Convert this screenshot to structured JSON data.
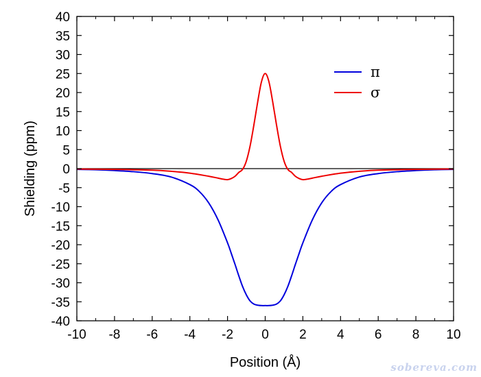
{
  "chart_data": {
    "type": "line",
    "title": "",
    "xlabel": "Position (Å)",
    "ylabel": "Shielding (ppm)",
    "xlim": [
      -10,
      10
    ],
    "ylim": [
      -40,
      40
    ],
    "xticks": [
      -10,
      -8,
      -6,
      -4,
      -2,
      0,
      2,
      4,
      6,
      8,
      10
    ],
    "yticks": [
      40,
      35,
      30,
      25,
      20,
      15,
      10,
      5,
      0,
      -5,
      -10,
      -15,
      -20,
      -25,
      -30,
      -35,
      -40
    ],
    "grid": false,
    "legend_position": "top-right",
    "zero_line": true,
    "series": [
      {
        "name": "π",
        "color": "#0000dd",
        "x": [
          -10,
          -9,
          -8,
          -7,
          -6,
          -5,
          -4,
          -3.5,
          -3,
          -2.5,
          -2,
          -1.8,
          -1.6,
          -1.4,
          -1.2,
          -1.0,
          -0.8,
          -0.6,
          -0.4,
          -0.2,
          0,
          0.2,
          0.4,
          0.6,
          0.8,
          1.0,
          1.2,
          1.4,
          1.6,
          1.8,
          2,
          2.5,
          3,
          3.5,
          4,
          5,
          6,
          7,
          8,
          9,
          10
        ],
        "y": [
          -0.2,
          -0.3,
          -0.5,
          -0.8,
          -1.3,
          -2.2,
          -4.2,
          -6.0,
          -9.0,
          -13.5,
          -19.5,
          -22.3,
          -25.2,
          -28.2,
          -31.0,
          -33.2,
          -34.8,
          -35.6,
          -35.9,
          -36.0,
          -36.0,
          -36.0,
          -35.9,
          -35.6,
          -34.8,
          -33.2,
          -31.0,
          -28.2,
          -25.2,
          -22.3,
          -19.5,
          -13.5,
          -9.0,
          -6.0,
          -4.2,
          -2.2,
          -1.3,
          -0.8,
          -0.5,
          -0.3,
          -0.2
        ]
      },
      {
        "name": "σ",
        "color": "#ee0000",
        "x": [
          -10,
          -8,
          -6,
          -5,
          -4,
          -3,
          -2.5,
          -2.2,
          -2.0,
          -1.8,
          -1.6,
          -1.4,
          -1.2,
          -1.0,
          -0.8,
          -0.6,
          -0.4,
          -0.2,
          0,
          0.2,
          0.4,
          0.6,
          0.8,
          1.0,
          1.2,
          1.4,
          1.6,
          1.8,
          2.0,
          2.2,
          2.5,
          3,
          4,
          5,
          6,
          8,
          10
        ],
        "y": [
          -0.1,
          -0.2,
          -0.4,
          -0.7,
          -1.2,
          -2.0,
          -2.5,
          -2.8,
          -2.9,
          -2.6,
          -2.0,
          -1.0,
          -0.2,
          2.0,
          6.0,
          11.5,
          17.5,
          22.8,
          25.0,
          22.8,
          17.5,
          11.5,
          6.0,
          2.0,
          -0.2,
          -1.0,
          -2.0,
          -2.6,
          -2.9,
          -2.8,
          -2.5,
          -2.0,
          -1.2,
          -0.7,
          -0.4,
          -0.2,
          -0.1
        ]
      }
    ]
  },
  "watermark": "sobereva.com"
}
